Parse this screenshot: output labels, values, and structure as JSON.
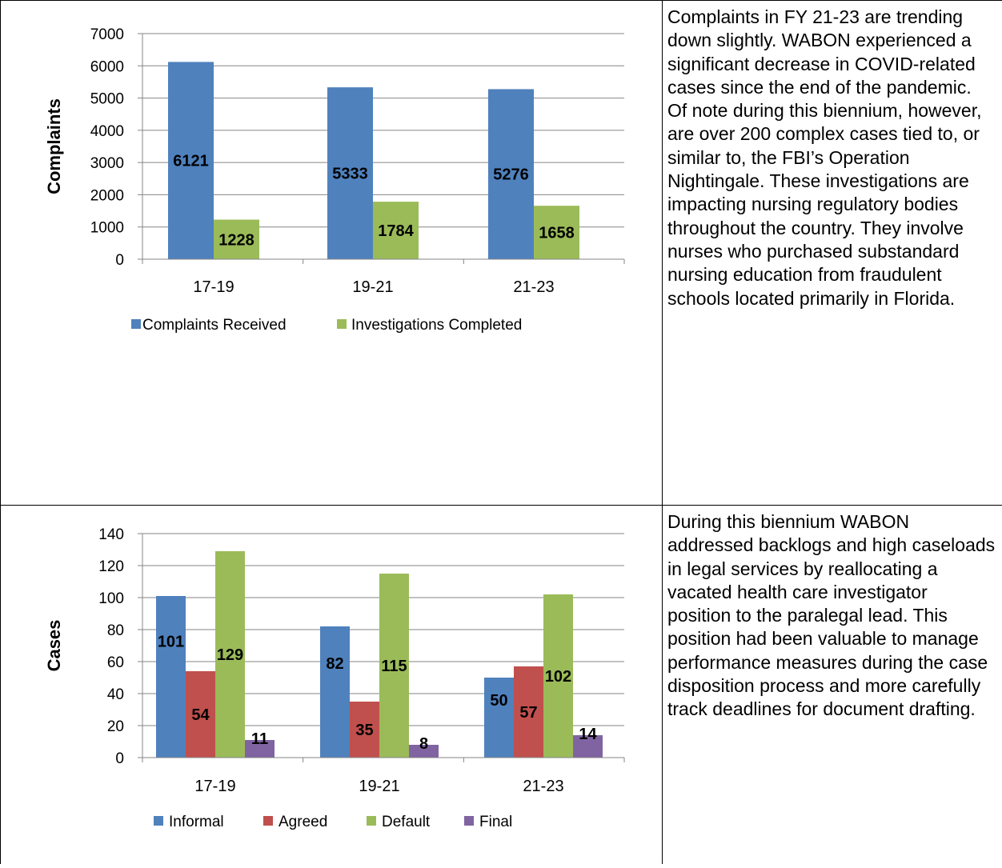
{
  "charts": [
    {
      "chart_data": {
        "type": "bar",
        "categories": [
          "17-19",
          "19-21",
          "21-23"
        ],
        "series": [
          {
            "name": "Complaints Received",
            "values": [
              6121,
              5333,
              5276
            ],
            "color": "#4f81bd"
          },
          {
            "name": "Investigations Completed",
            "values": [
              1228,
              1784,
              1658
            ],
            "color": "#9bbb59"
          }
        ],
        "ylabel": "Complaints",
        "ylim": [
          0,
          7000
        ],
        "yticks": [
          0,
          1000,
          2000,
          3000,
          4000,
          5000,
          6000,
          7000
        ],
        "grid": true,
        "legend": "bottom"
      }
    },
    {
      "chart_data": {
        "type": "bar",
        "categories": [
          "17-19",
          "19-21",
          "21-23"
        ],
        "series": [
          {
            "name": "Informal",
            "values": [
              101,
              82,
              50
            ],
            "color": "#4f81bd"
          },
          {
            "name": "Agreed",
            "values": [
              54,
              35,
              57
            ],
            "color": "#c0504d"
          },
          {
            "name": "Default",
            "values": [
              129,
              115,
              102
            ],
            "color": "#9bbb59"
          },
          {
            "name": "Final",
            "values": [
              11,
              8,
              14
            ],
            "color": "#8064a2"
          }
        ],
        "ylabel": "Cases",
        "ylim": [
          0,
          140
        ],
        "yticks": [
          0,
          20,
          40,
          60,
          80,
          100,
          120,
          140
        ],
        "grid": true,
        "legend": "bottom"
      }
    }
  ],
  "notes": {
    "complaints": "Complaints in FY 21-23 are trending down slightly. WABON experienced a significant decrease in COVID-related cases since the end of the pandemic. Of note during this biennium, however, are over 200 complex cases tied to, or similar to, the FBI’s Operation Nightingale. These investigations are impacting nursing regulatory bodies throughout the country. They involve nurses who purchased substandard nursing education from fraudulent schools located primarily in Florida.",
    "cases": "During this biennium WABON addressed backlogs and high caseloads in legal services by reallocating a vacated health care investigator position to the paralegal lead. This position had been valuable to manage performance measures during the case disposition process and more carefully track deadlines for document drafting."
  }
}
